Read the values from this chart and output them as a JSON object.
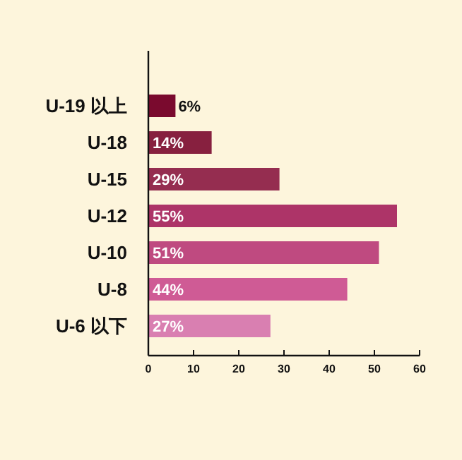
{
  "chart_data": {
    "type": "bar",
    "orientation": "horizontal",
    "categories": [
      "U-19 以上",
      "U-18",
      "U-15",
      "U-12",
      "U-10",
      "U-8",
      "U-6 以下"
    ],
    "values": [
      6,
      14,
      29,
      55,
      51,
      44,
      27
    ],
    "colors": [
      "#7a0a2e",
      "#87203f",
      "#952d50",
      "#ad3468",
      "#bf4a80",
      "#cf5b95",
      "#d97fb1"
    ],
    "value_labels": [
      "6%",
      "14%",
      "29%",
      "55%",
      "51%",
      "44%",
      "27%"
    ],
    "xlim": [
      0,
      60
    ],
    "xticks": [
      0,
      10,
      20,
      30,
      40,
      50,
      60
    ],
    "grid": false
  }
}
